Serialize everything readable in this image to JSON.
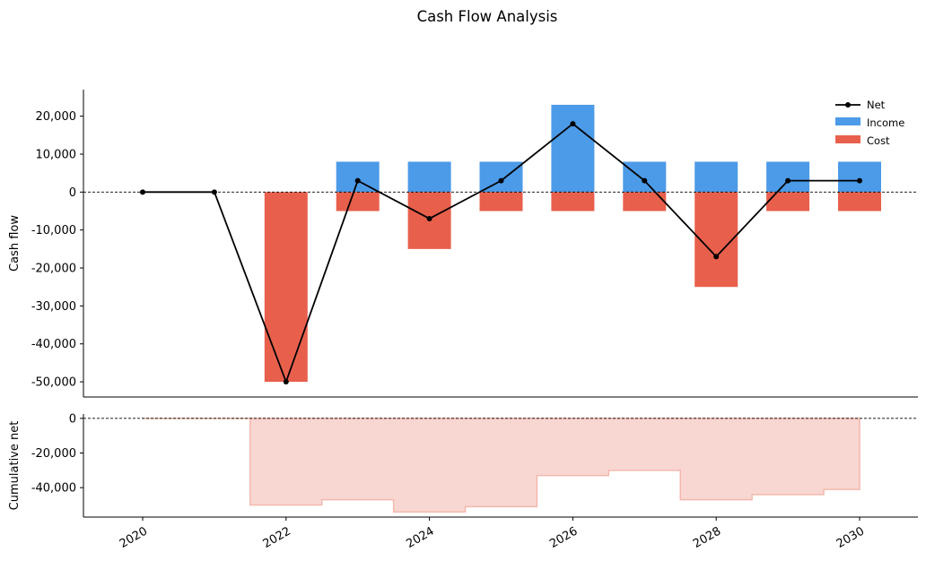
{
  "chart_data": {
    "type": "bar",
    "title": "Cash Flow Analysis",
    "x": [
      2020,
      2021,
      2022,
      2023,
      2024,
      2025,
      2026,
      2027,
      2028,
      2029,
      2030
    ],
    "xticks": [
      "2020",
      "2022",
      "2024",
      "2026",
      "2028",
      "2030"
    ],
    "top_panel": {
      "ylabel": "Cash flow",
      "ylim": [
        -54000,
        27000
      ],
      "yticks": [
        "20,000",
        "10,000",
        "0",
        "-10,000",
        "-20,000",
        "-30,000",
        "-40,000",
        "-50,000"
      ],
      "ytick_values": [
        20000,
        10000,
        0,
        -10000,
        -20000,
        -30000,
        -40000,
        -50000
      ],
      "series": [
        {
          "name": "Income",
          "type": "bar",
          "color": "#4c9be8",
          "values": [
            0,
            0,
            0,
            8000,
            8000,
            8000,
            23000,
            8000,
            8000,
            8000,
            8000
          ]
        },
        {
          "name": "Cost",
          "type": "bar",
          "color": "#e8604c",
          "values": [
            0,
            0,
            -50000,
            -5000,
            -15000,
            -5000,
            -5000,
            -5000,
            -25000,
            -5000,
            -5000
          ]
        },
        {
          "name": "Net",
          "type": "line",
          "color": "#000000",
          "values": [
            0,
            0,
            -50000,
            3000,
            -7000,
            3000,
            18000,
            3000,
            -17000,
            3000,
            3000
          ]
        }
      ],
      "legend": [
        "Net",
        "Income",
        "Cost"
      ],
      "legend_placement": "top-right",
      "zero_line": "dashed"
    },
    "bottom_panel": {
      "ylabel": "Cumulative net",
      "type": "area-step",
      "color": "#f8d7d2",
      "edge_color": "#f4b8ad",
      "ylim": [
        -57000,
        2500
      ],
      "yticks": [
        "0",
        "-20,000",
        "-40,000"
      ],
      "ytick_values": [
        0,
        -20000,
        -40000
      ],
      "values": [
        0,
        0,
        -50000,
        -47000,
        -54000,
        -51000,
        -33000,
        -30000,
        -47000,
        -44000,
        -41000
      ],
      "zero_line": "dashed"
    }
  }
}
